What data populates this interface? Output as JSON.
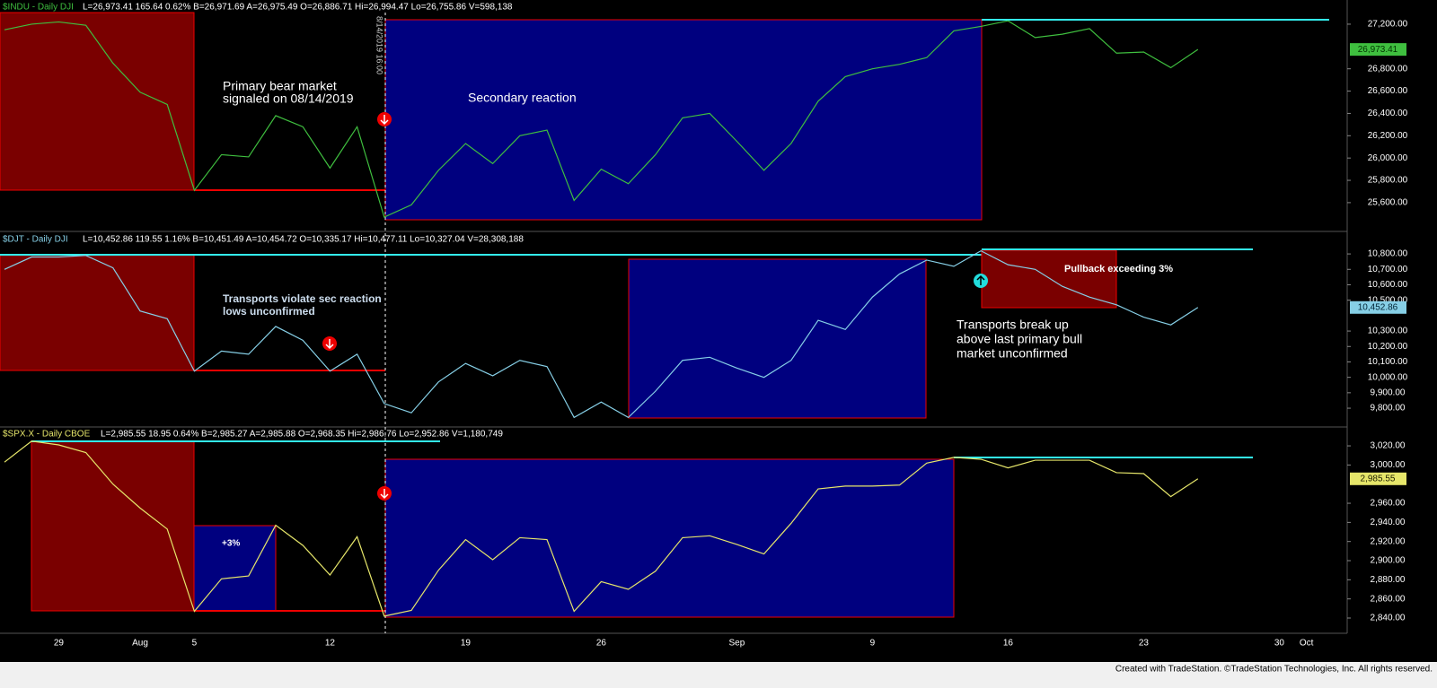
{
  "footer": "Created with TradeStation. ©TradeStation Technologies, Inc. All rights reserved.",
  "chart_data": [
    {
      "type": "line",
      "header": "$INDU - Daily  DJI",
      "quote": "L=26,973.41  165.64  0.62%  B=26,971.69  A=26,975.49  O=26,886.71  Hi=26,994.47  Lo=26,755.86  V=598,138",
      "color": "#3fbf3f",
      "values": [
        27150,
        27200,
        27220,
        27190,
        26850,
        26590,
        26480,
        25710,
        26030,
        26010,
        26380,
        26280,
        25910,
        26280,
        25470,
        25580,
        25890,
        26130,
        25950,
        26200,
        26250,
        25620,
        25900,
        25770,
        26030,
        26360,
        26400,
        26150,
        25890,
        26130,
        26510,
        26730,
        26800,
        26840,
        26900,
        27140,
        27180,
        27230,
        27080,
        27110,
        27160,
        26940,
        26950,
        26810,
        26973.41,
        null,
        null,
        null,
        null
      ],
      "ylim": [
        25350,
        27280
      ],
      "yticks": [
        {
          "value": 27200,
          "label": "27,200.00"
        },
        {
          "value": 26800,
          "label": "26,800.00"
        },
        {
          "value": 26600,
          "label": "26,600.00"
        },
        {
          "value": 26400,
          "label": "26,400.00"
        },
        {
          "value": 26200,
          "label": "26,200.00"
        },
        {
          "value": 26000,
          "label": "26,000.00"
        },
        {
          "value": 25800,
          "label": "25,800.00"
        },
        {
          "value": 25600,
          "label": "25,600.00"
        }
      ],
      "last_tag": {
        "value": 26973.41,
        "label": "26,973.41"
      },
      "cursor_label": "8/14/2019 16:00",
      "annotations": [
        [
          "Primary bear market",
          "signaled on 08/14/2019"
        ],
        [
          "Secondary reaction"
        ]
      ]
    },
    {
      "type": "line",
      "header": "$DJT - Daily  DJI",
      "quote": "L=10,452.86  119.55  1.16%  B=10,451.49  A=10,454.72  O=10,335.17  Hi=10,477.11  Lo=10,327.04  V=28,308,188",
      "color": "#86cfe6",
      "values": [
        10700,
        10780,
        10780,
        10790,
        10710,
        10430,
        10380,
        10040,
        10170,
        10150,
        10330,
        10240,
        10040,
        10150,
        9830,
        9770,
        9970,
        10090,
        10010,
        10110,
        10070,
        9740,
        9840,
        9740,
        9910,
        10110,
        10130,
        10060,
        10000,
        10110,
        10370,
        10310,
        10520,
        10670,
        10760,
        10720,
        10820,
        10730,
        10700,
        10590,
        10520,
        10470,
        10390,
        10340,
        10452.86,
        null,
        null,
        null,
        null
      ],
      "ylim": [
        9684,
        10847
      ],
      "yticks": [
        {
          "value": 10800,
          "label": "10,800.00"
        },
        {
          "value": 10700,
          "label": "10,700.00"
        },
        {
          "value": 10600,
          "label": "10,600.00"
        },
        {
          "value": 10500,
          "label": "10,500.00"
        },
        {
          "value": 10300,
          "label": "10,300.00"
        },
        {
          "value": 10200,
          "label": "10,200.00"
        },
        {
          "value": 10100,
          "label": "10,100.00"
        },
        {
          "value": 10000,
          "label": "10,000.00"
        },
        {
          "value": 9900,
          "label": "9,900.00"
        },
        {
          "value": 9800,
          "label": "9,800.00"
        }
      ],
      "last_tag": {
        "value": 10452.86,
        "label": "10,452.86"
      },
      "annotations": [
        [
          "Transports violate sec reaction",
          "lows unconfirmed"
        ],
        [
          "Pullback exceeding 3%"
        ],
        [
          "Transports break up",
          "above last primary bull",
          "market unconfirmed"
        ]
      ]
    },
    {
      "type": "line",
      "header": "$SPX.X - Daily  CBOE",
      "quote": "L=2,985.55  18.95  0.64%  B=2,985.27  A=2,985.88  O=2,968.35  Hi=2,986.76  Lo=2,952.86  V=1,180,749",
      "color": "#e6e66a",
      "values": [
        3003,
        3025,
        3021,
        3013,
        2980,
        2955,
        2933,
        2847,
        2881,
        2884,
        2937,
        2916,
        2885,
        2925,
        2842,
        2848,
        2890,
        2922,
        2901,
        2924,
        2922,
        2847,
        2878,
        2870,
        2889,
        2924,
        2926,
        2917,
        2907,
        2939,
        2975,
        2978,
        2978,
        2979,
        3002,
        3008,
        3006,
        2997,
        3005,
        3005,
        3005,
        2992,
        2991,
        2967,
        2985.55,
        null,
        null,
        null,
        null
      ],
      "ylim": [
        2825,
        3036
      ],
      "yticks": [
        {
          "value": 3020,
          "label": "3,020.00"
        },
        {
          "value": 3000,
          "label": "3,000.00"
        },
        {
          "value": 2960,
          "label": "2,960.00"
        },
        {
          "value": 2940,
          "label": "2,940.00"
        },
        {
          "value": 2920,
          "label": "2,920.00"
        },
        {
          "value": 2900,
          "label": "2,900.00"
        },
        {
          "value": 2880,
          "label": "2,880.00"
        },
        {
          "value": 2860,
          "label": "2,860.00"
        },
        {
          "value": 2840,
          "label": "2,840.00"
        }
      ],
      "last_tag": {
        "value": 2985.55,
        "label": "2,985.55"
      },
      "annotations": [
        [
          "+3%"
        ]
      ],
      "categories": [
        null,
        null,
        "29",
        null,
        null,
        "Aug",
        null,
        "5",
        null,
        null,
        null,
        null,
        "12",
        null,
        null,
        null,
        null,
        "19",
        null,
        null,
        null,
        null,
        "26",
        null,
        null,
        null,
        null,
        "Sep",
        null,
        null,
        null,
        null,
        "9",
        null,
        null,
        null,
        null,
        "16",
        null,
        null,
        null,
        null,
        "23",
        null,
        null,
        null,
        null,
        "30",
        "Oct"
      ]
    }
  ]
}
